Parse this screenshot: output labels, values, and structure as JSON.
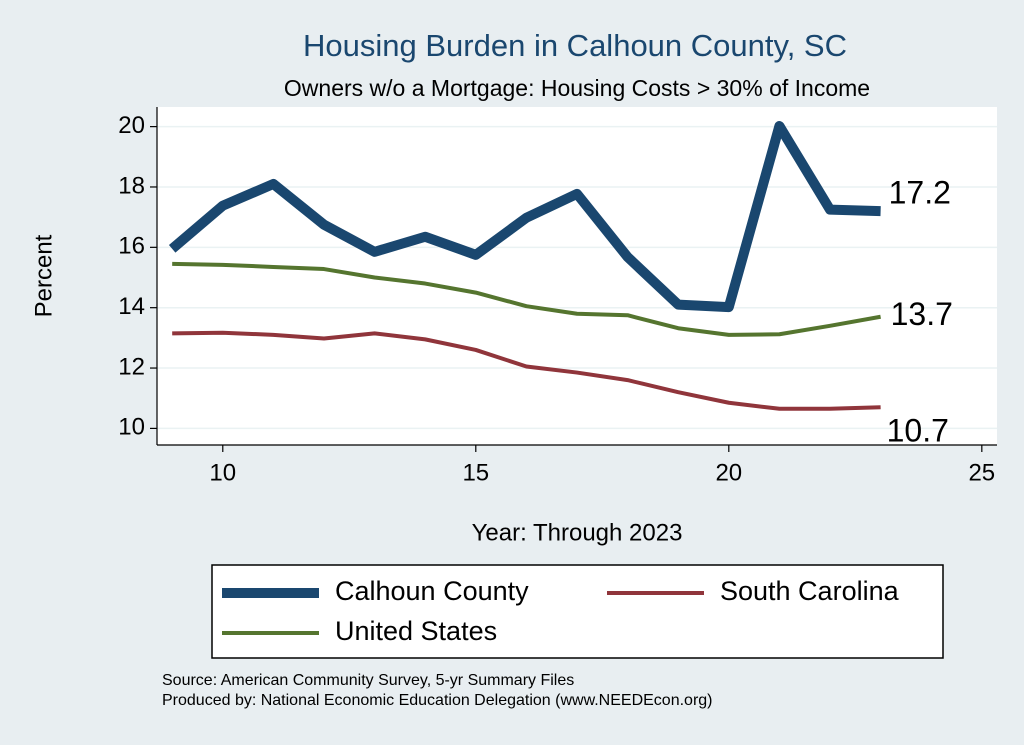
{
  "chart_data": {
    "type": "line",
    "title": "Housing Burden in Calhoun County, SC",
    "subtitle": "Owners w/o a Mortgage: Housing Costs > 30% of Income",
    "x_label": "Year: Through 2023",
    "y_label": "Percent",
    "x": [
      9,
      10,
      11,
      12,
      13,
      14,
      15,
      16,
      17,
      18,
      19,
      20,
      21,
      22,
      23
    ],
    "series": [
      {
        "name": "Calhoun County",
        "color": "#1a476f",
        "values": [
          15.95,
          17.38,
          18.1,
          16.75,
          15.85,
          16.35,
          15.75,
          16.98,
          17.77,
          15.68,
          14.1,
          14.02,
          20.02,
          17.25,
          17.2
        ]
      },
      {
        "name": "South Carolina",
        "color": "#90353b",
        "values": [
          13.15,
          13.17,
          13.1,
          12.98,
          13.15,
          12.95,
          12.6,
          12.05,
          11.85,
          11.6,
          11.2,
          10.85,
          10.65,
          10.65,
          10.7
        ]
      },
      {
        "name": "United States",
        "color": "#55752f",
        "values": [
          15.45,
          15.42,
          15.35,
          15.28,
          15.0,
          14.8,
          14.5,
          14.05,
          13.8,
          13.75,
          13.32,
          13.1,
          13.12,
          13.4,
          13.7
        ]
      }
    ],
    "xlim": [
      8.7,
      25.3
    ],
    "ylim": [
      9.45,
      20.65
    ],
    "xticks": [
      10,
      15,
      20,
      25
    ],
    "yticks": [
      10,
      12,
      14,
      16,
      18,
      20
    ],
    "grid": true,
    "notes": [
      "Source: American Community Survey, 5-yr Summary Files",
      "Produced by: National Economic Education Delegation (www.NEEDEcon.org)"
    ]
  }
}
